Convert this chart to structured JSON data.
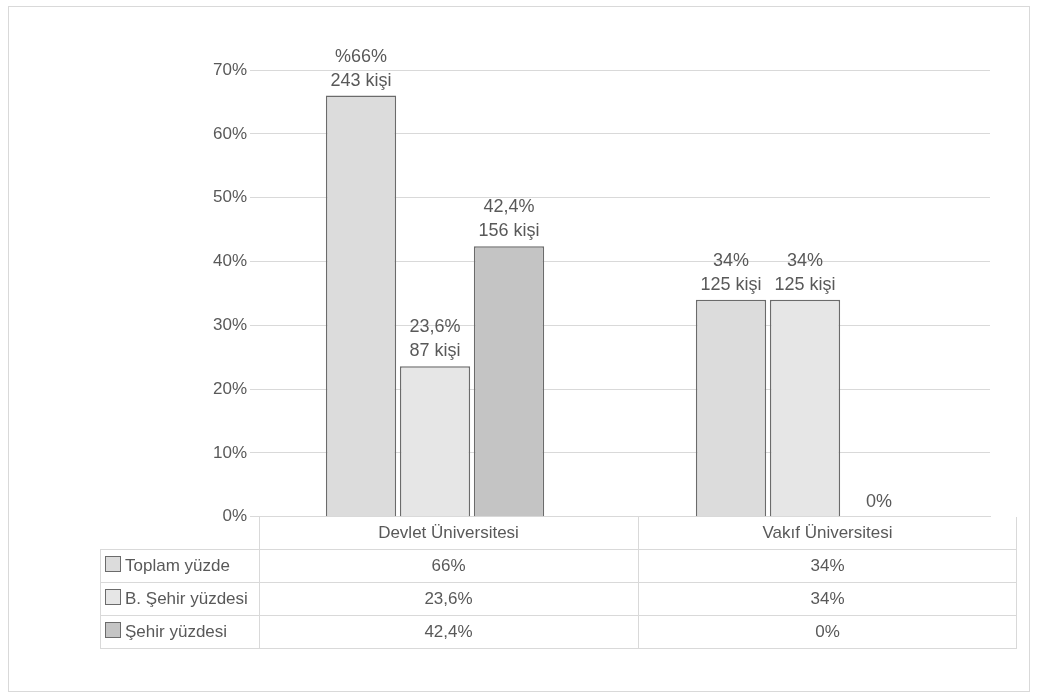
{
  "chart_data": {
    "type": "bar",
    "categories": [
      "Devlet Üniversitesi",
      "Vakıf Üniversitesi"
    ],
    "series": [
      {
        "name": "Toplam yüzde",
        "color": "#dcdcdc",
        "values": [
          66,
          34
        ],
        "value_labels": [
          "66%",
          "34%"
        ]
      },
      {
        "name": "B. Şehir yüzdesi",
        "color": "#e6e6e6",
        "values": [
          23.6,
          34
        ],
        "value_labels": [
          "23,6%",
          "34%"
        ]
      },
      {
        "name": "Şehir yüzdesi",
        "color": "#c4c4c4",
        "values": [
          42.4,
          0
        ],
        "value_labels": [
          "42,4%",
          "0%"
        ]
      }
    ],
    "ylim": [
      0,
      70
    ],
    "yticks": [
      {
        "value": 0,
        "label": "0%"
      },
      {
        "value": 10,
        "label": "10%"
      },
      {
        "value": 20,
        "label": "20%"
      },
      {
        "value": 30,
        "label": "30%"
      },
      {
        "value": 40,
        "label": "40%"
      },
      {
        "value": 50,
        "label": "50%"
      },
      {
        "value": 60,
        "label": "60%"
      },
      {
        "value": 70,
        "label": "70%"
      }
    ],
    "grid": "y",
    "legend": "bottom",
    "annotations": [
      "%66%\n243 kişi",
      "34%\n125 kişi",
      "23,6%\n87 kişi",
      "34%\n125 kişi",
      "42,4%\n156 kişi",
      "0%"
    ]
  }
}
